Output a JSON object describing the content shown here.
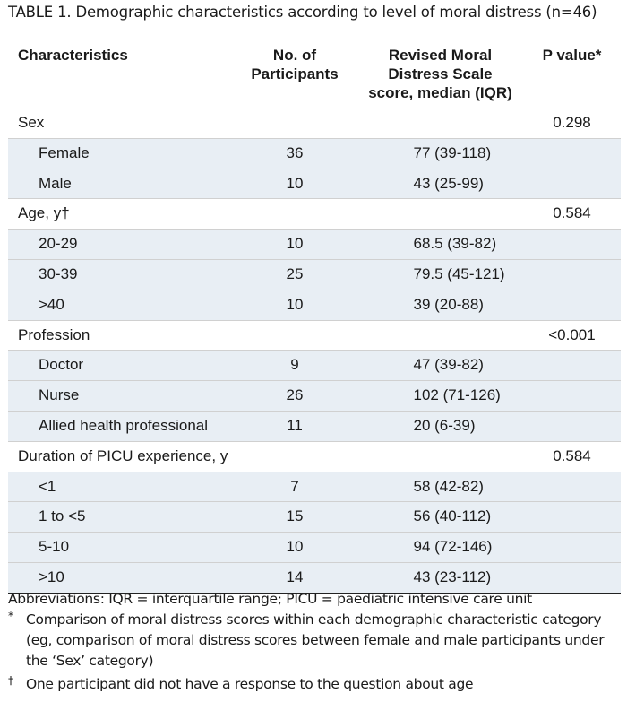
{
  "title": "TABLE 1. Demographic characteristics according to level of moral distress (n=46)",
  "headers": {
    "characteristics": "Characteristics",
    "participants": [
      "No. of",
      "Participants"
    ],
    "score": [
      "Revised Moral",
      "Distress Scale",
      "score, median (IQR)"
    ],
    "pvalue": "P value*"
  },
  "rows": [
    {
      "type": "cat",
      "label": "Sex",
      "num": "",
      "score": "",
      "p": "0.298"
    },
    {
      "type": "sub",
      "label": "Female",
      "num": "36",
      "score": "77 (39-118)",
      "p": ""
    },
    {
      "type": "sub",
      "label": "Male",
      "num": "10",
      "score": "43 (25-99)",
      "p": ""
    },
    {
      "type": "cat",
      "label": "Age, y†",
      "num": "",
      "score": "",
      "p": "0.584"
    },
    {
      "type": "sub",
      "label": "20-29",
      "num": "10",
      "score": "68.5 (39-82)",
      "p": ""
    },
    {
      "type": "sub",
      "label": "30-39",
      "num": "25",
      "score": "79.5 (45-121)",
      "p": ""
    },
    {
      "type": "sub",
      "label": ">40",
      "num": "10",
      "score": "39 (20-88)",
      "p": ""
    },
    {
      "type": "cat",
      "label": "Profession",
      "num": "",
      "score": "",
      "p": "<0.001"
    },
    {
      "type": "sub",
      "label": "Doctor",
      "num": "9",
      "score": "47 (39-82)",
      "p": ""
    },
    {
      "type": "sub",
      "label": "Nurse",
      "num": "26",
      "score": "102 (71-126)",
      "p": ""
    },
    {
      "type": "sub",
      "label": "Allied health professional",
      "num": "11",
      "score": "20 (6-39)",
      "p": ""
    },
    {
      "type": "cat",
      "label": "Duration of PICU experience, y",
      "num": "",
      "score": "",
      "p": "0.584"
    },
    {
      "type": "sub",
      "label": "<1",
      "num": "7",
      "score": "58 (42-82)",
      "p": ""
    },
    {
      "type": "sub",
      "label": "1 to <5",
      "num": "15",
      "score": "56 (40-112)",
      "p": ""
    },
    {
      "type": "sub",
      "label": "5-10",
      "num": "10",
      "score": "94 (72-146)",
      "p": ""
    },
    {
      "type": "sub",
      "label": ">10",
      "num": "14",
      "score": "43 (23-112)",
      "p": ""
    }
  ],
  "footnotes": {
    "abbreviations": "Abbreviations: IQR = interquartile range; PICU = paediatric intensive care unit",
    "star_symbol": "*",
    "star_text": "Comparison of moral distress scores within each demographic characteristic category (eg, comparison of moral distress scores between female and male participants under the ‘Sex’ category)",
    "dagger_symbol": "†",
    "dagger_text": "One participant did not have a response to the question about age"
  }
}
